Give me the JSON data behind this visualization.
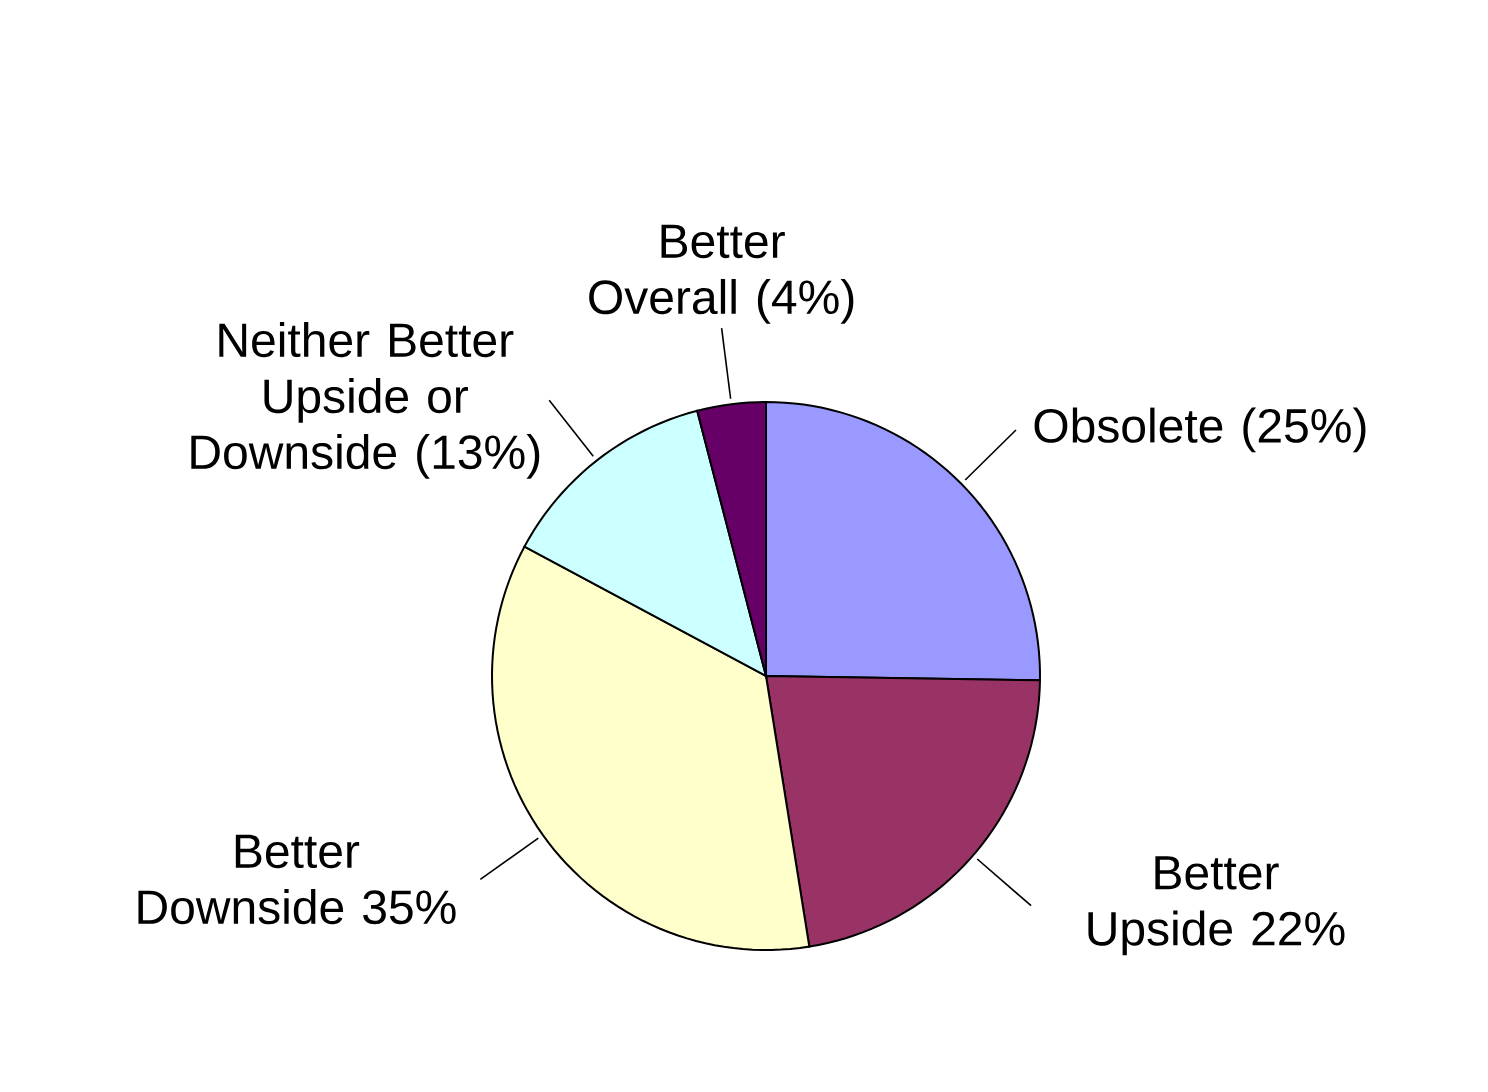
{
  "chart_data": {
    "type": "pie",
    "categories": [
      "Obsolete",
      "Better Upside",
      "Better Downside",
      "Neither Better Upside or Downside",
      "Better Overall"
    ],
    "values": [
      25,
      22,
      35,
      13,
      4
    ],
    "value_labels": [
      "(25%)",
      "22%",
      "35%",
      "(13%)",
      "(4%)"
    ],
    "colors": [
      "#9999ff",
      "#993366",
      "#ffffcc",
      "#ccffff",
      "#660066"
    ]
  }
}
